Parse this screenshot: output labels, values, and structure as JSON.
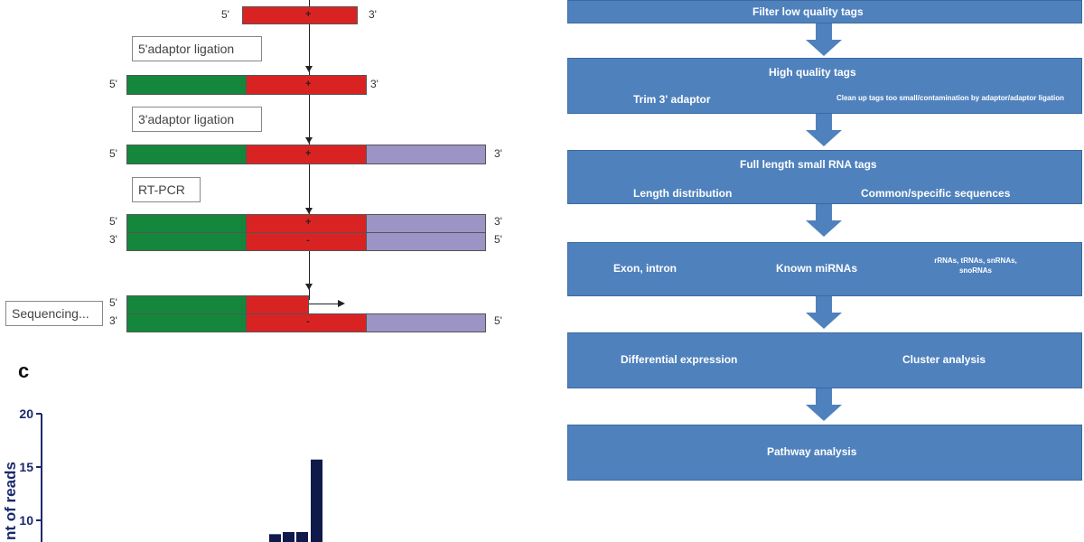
{
  "left": {
    "prime5": "5'",
    "prime3": "3'",
    "plus": "+",
    "minus": "-",
    "steps": {
      "adaptor5": "5'adaptor ligation",
      "adaptor3": "3'adaptor ligation",
      "rtpcr": "RT-PCR",
      "sequencing": "Sequencing..."
    },
    "panel_label": "c"
  },
  "chart": {
    "ylabel": "nt of reads",
    "chart_data": {
      "type": "bar",
      "yticks": [
        10,
        15,
        20
      ],
      "ylim": [
        10,
        20
      ],
      "values": [
        8.7,
        8.9,
        8.9,
        15.7
      ]
    }
  },
  "flow": {
    "box1": {
      "title": "Filter low quality tags"
    },
    "box2": {
      "title": "High quality tags",
      "left": "Trim 3' adaptor",
      "right": "Clean up tags too small/contamination  by adaptor/adaptor ligation"
    },
    "box3": {
      "title": "Full length small RNA tags",
      "left": "Length distribution",
      "right": "Common/specific sequences"
    },
    "box4": {
      "left": "Exon, intron",
      "mid": "Known miRNAs",
      "right": "rRNAs, tRNAs, snRNAs, snoRNAs"
    },
    "box5": {
      "left": "Differential expression",
      "right": "Cluster analysis"
    },
    "box6": {
      "title": "Pathway analysis"
    },
    "colors": {
      "box": "#4f81bd"
    }
  }
}
